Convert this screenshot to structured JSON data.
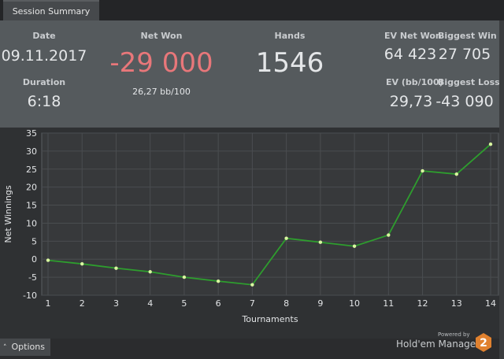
{
  "tab": {
    "label": "Session Summary"
  },
  "summary": {
    "date_label": "Date",
    "date_value": "09.11.2017",
    "duration_label": "Duration",
    "duration_value": "6:18",
    "net_won_label": "Net Won",
    "net_won_value": "-29 000",
    "net_won_bb": "26,27 bb/100",
    "hands_label": "Hands",
    "hands_value": "1546",
    "ev_net_won_label": "EV Net Won",
    "ev_net_won_value": "64 423",
    "biggest_win_label": "Biggest Win",
    "biggest_win_value": "27 705",
    "ev_bb_label": "EV (bb/100)",
    "ev_bb_value": "29,73",
    "biggest_loss_label": "Biggest Loss",
    "biggest_loss_value": "-43 090"
  },
  "colors": {
    "net_won_negative": "#e8777a",
    "line": "#2e9d2e",
    "point": "#d9f7a0"
  },
  "chart_data": {
    "type": "line",
    "xlabel": "Tournaments",
    "ylabel": "Net Winnings",
    "x": [
      1,
      2,
      3,
      4,
      5,
      6,
      7,
      8,
      9,
      10,
      11,
      12,
      13,
      14
    ],
    "series": [
      {
        "values": [
          -0.3,
          -1.3,
          -2.5,
          -3.5,
          -5,
          -6.1,
          -7.1,
          5.8,
          4.7,
          3.6,
          6.7,
          24.5,
          23.6,
          31.9
        ]
      }
    ],
    "xlim": [
      1,
      14
    ],
    "ylim": [
      -10,
      35
    ],
    "yticks": [
      -10,
      -5,
      0,
      5,
      10,
      15,
      20,
      25,
      30,
      35
    ],
    "grid": true
  },
  "footer": {
    "options_label": "Options",
    "options_icon": "caret-up-icon",
    "powered_by": "Powered by",
    "brand": "Hold'em Manager",
    "logo_text": "2"
  }
}
